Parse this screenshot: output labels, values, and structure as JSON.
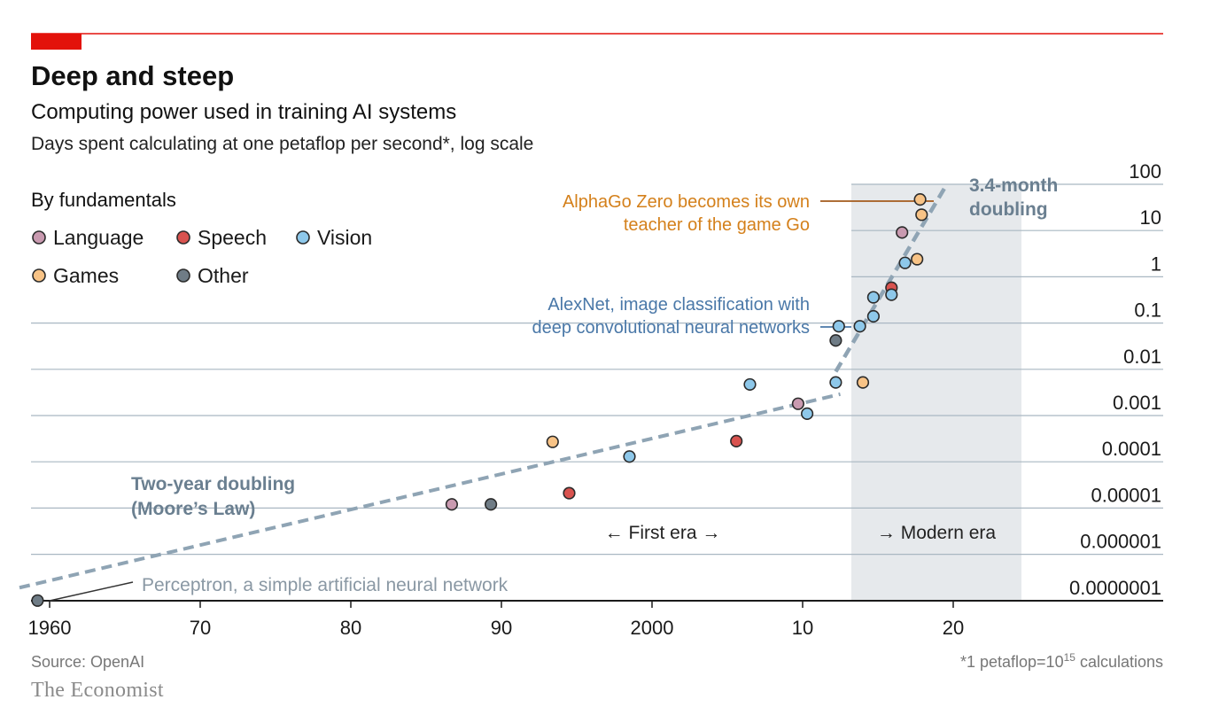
{
  "chart_data": {
    "type": "scatter",
    "title": "Deep and steep",
    "subtitle": "Computing power used in training AI systems",
    "ylabel": "Days spent calculating at one petaflop per second*, log scale",
    "legend_title": "By fundamentals",
    "legend_placement": "top-left",
    "y_scale": "log",
    "ylim": [
      1e-07,
      100
    ],
    "xlim": [
      1958,
      2030
    ],
    "x_ticks": [
      {
        "value": 1960,
        "label": "1960"
      },
      {
        "value": 1970,
        "label": "70"
      },
      {
        "value": 1980,
        "label": "80"
      },
      {
        "value": 1990,
        "label": "90"
      },
      {
        "value": 2000,
        "label": "2000"
      },
      {
        "value": 2010,
        "label": "10"
      },
      {
        "value": 2020,
        "label": "20"
      }
    ],
    "y_ticks": [
      {
        "value": 100,
        "label": "100"
      },
      {
        "value": 10,
        "label": "10"
      },
      {
        "value": 1,
        "label": "1"
      },
      {
        "value": 0.1,
        "label": "0.1"
      },
      {
        "value": 0.01,
        "label": "0.01"
      },
      {
        "value": 0.001,
        "label": "0.001"
      },
      {
        "value": 0.0001,
        "label": "0.0001"
      },
      {
        "value": 1e-05,
        "label": "0.00001"
      },
      {
        "value": 1e-06,
        "label": "0.000001"
      },
      {
        "value": 1e-07,
        "label": "0.0000001"
      }
    ],
    "grid": true,
    "categories": [
      {
        "key": "language",
        "name": "Language",
        "color": "#c99ab0"
      },
      {
        "key": "speech",
        "name": "Speech",
        "color": "#d9534f"
      },
      {
        "key": "vision",
        "name": "Vision",
        "color": "#8ec8ea"
      },
      {
        "key": "games",
        "name": "Games",
        "color": "#f8c386"
      },
      {
        "key": "other",
        "name": "Other",
        "color": "#6f7c86"
      }
    ],
    "points": [
      {
        "x": 1959.2,
        "y": 1e-07,
        "cat": "other"
      },
      {
        "x": 1986.7,
        "y": 1.2e-05,
        "cat": "language"
      },
      {
        "x": 1989.3,
        "y": 1.2e-05,
        "cat": "other"
      },
      {
        "x": 1993.4,
        "y": 0.00027,
        "cat": "games"
      },
      {
        "x": 1994.5,
        "y": 2.1e-05,
        "cat": "speech"
      },
      {
        "x": 1998.5,
        "y": 0.00013,
        "cat": "vision"
      },
      {
        "x": 2005.6,
        "y": 0.00028,
        "cat": "speech"
      },
      {
        "x": 2006.5,
        "y": 0.0047,
        "cat": "vision"
      },
      {
        "x": 2009.7,
        "y": 0.0018,
        "cat": "language"
      },
      {
        "x": 2010.3,
        "y": 0.0011,
        "cat": "vision"
      },
      {
        "x": 2012.2,
        "y": 0.0052,
        "cat": "vision"
      },
      {
        "x": 2012.2,
        "y": 0.042,
        "cat": "other"
      },
      {
        "x": 2012.4,
        "y": 0.085,
        "cat": "vision"
      },
      {
        "x": 2013.8,
        "y": 0.085,
        "cat": "vision"
      },
      {
        "x": 2014.0,
        "y": 0.0052,
        "cat": "games"
      },
      {
        "x": 2014.7,
        "y": 0.14,
        "cat": "vision"
      },
      {
        "x": 2014.7,
        "y": 0.36,
        "cat": "vision"
      },
      {
        "x": 2015.9,
        "y": 0.58,
        "cat": "speech"
      },
      {
        "x": 2015.9,
        "y": 0.41,
        "cat": "vision"
      },
      {
        "x": 2016.6,
        "y": 9.1,
        "cat": "language"
      },
      {
        "x": 2016.8,
        "y": 2.0,
        "cat": "vision"
      },
      {
        "x": 2017.6,
        "y": 2.4,
        "cat": "games"
      },
      {
        "x": 2017.8,
        "y": 47,
        "cat": "games"
      },
      {
        "x": 2017.9,
        "y": 22,
        "cat": "games"
      }
    ],
    "trend_lines": [
      {
        "name": "Two-year doubling (Moore's Law)",
        "from": [
          1958,
          1.9e-07
        ],
        "to": [
          2012.5,
          0.0029
        ]
      },
      {
        "name": "3.4-month doubling",
        "from": [
          2012.2,
          0.0089
        ],
        "to": [
          2019.5,
          91
        ]
      }
    ],
    "shaded_region": {
      "from": 2012.2,
      "to": 2023.5,
      "label": "Modern era"
    },
    "annotations": {
      "first_era": "← First era →",
      "modern_era": "→ Modern era",
      "moore_line1": "Two-year doubling",
      "moore_line2": "(Moore’s Law)",
      "fast_line1": "3.4-month",
      "fast_line2": "doubling",
      "perceptron": "Perceptron, a simple artificial neural network",
      "alexnet_line1": "AlexNet, image classification with",
      "alexnet_line2": "deep convolutional neural networks",
      "alphago_line1": "AlphaGo Zero becomes its own",
      "alphago_line2": "teacher of the game Go"
    },
    "source": "Source: OpenAI",
    "footnote_prefix": "*1 petaflop=10",
    "footnote_exponent": "15",
    "footnote_suffix": " calculations",
    "colors": {
      "accent": "#e3120b",
      "trend": "#8fa4b4",
      "trend_label": "#6a7f90",
      "alexnet": "#4a78a8",
      "alphago": "#d4801b",
      "shade": "#e6e9ec"
    }
  },
  "brand": "The Economist"
}
